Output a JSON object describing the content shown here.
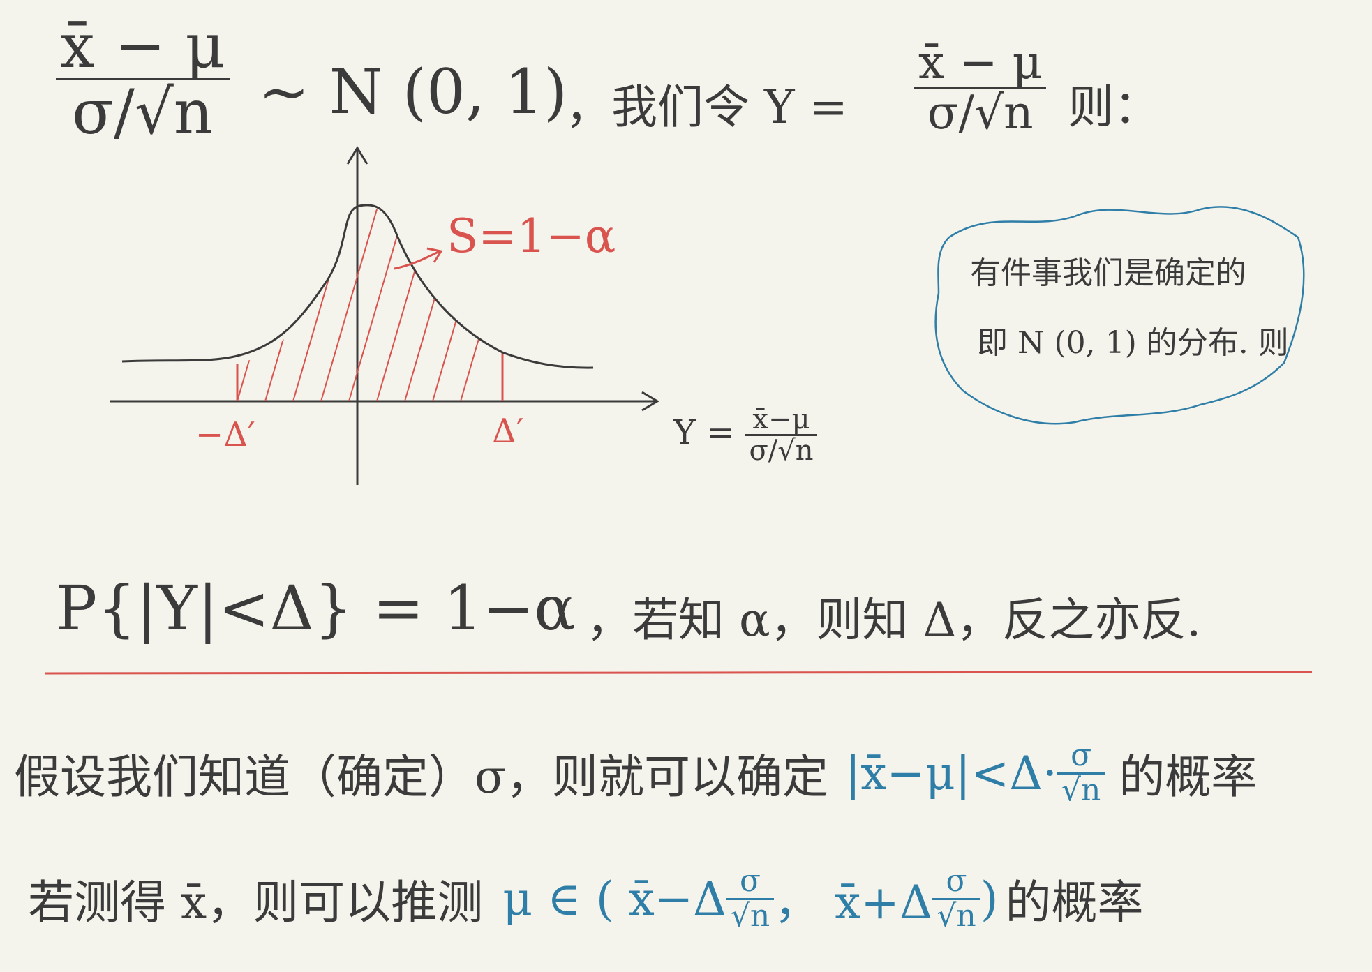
{
  "line1": {
    "frac_num": "x̄ − μ",
    "frac_den": "σ/√n",
    "dist": "∼ N (0, 1)",
    "text": "，我们令 Y =",
    "frac2_num": "x̄ − μ",
    "frac2_den": "σ/√n",
    "then": "则："
  },
  "graph": {
    "area_label": "S=1−α",
    "left_bound": "−Δ′",
    "right_bound": "Δ′",
    "axis_label": "Y =",
    "axis_frac_num": "x̄−μ",
    "axis_frac_den": "σ/√n"
  },
  "note": {
    "line1": "有件事我们是确定的",
    "line2": "即 N (0, 1) 的分布. 则"
  },
  "prob_line": {
    "formula": "P{|Y|<Δ} = 1−α",
    "text": "，若知 α，则知 Δ，反之亦反."
  },
  "para1": {
    "text1": "假设我们知道（确定）σ，则就可以确定",
    "expr": "|x̄−μ|<Δ·",
    "frac_num": "σ",
    "frac_den": "√n",
    "text2": "的概率"
  },
  "para2": {
    "text1": "若测得 x̄，则可以推测",
    "expr": "μ ∈ ( x̄−Δ",
    "f1_num": "σ",
    "f1_den": "√n",
    "mid": "， x̄+Δ",
    "f2_num": "σ",
    "f2_den": "√n",
    "close": ")",
    "text2": "的概率"
  },
  "colors": {
    "ink": "#3b3b3b",
    "red": "#d9534f",
    "blue": "#2f7ea8",
    "paper": "#f5f4ec"
  }
}
